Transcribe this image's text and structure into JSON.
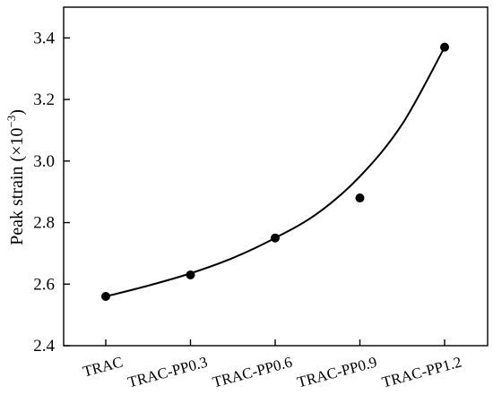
{
  "chart_data": {
    "type": "scatter",
    "categories": [
      "TRAC",
      "TRAC-PP0.3",
      "TRAC-PP0.6",
      "TRAC-PP0.9",
      "TRAC-PP1.2"
    ],
    "values": [
      2.56,
      2.63,
      2.75,
      2.88,
      3.37
    ],
    "fit_curve": {
      "x_index": [
        0,
        0.5,
        1,
        1.5,
        2,
        2.5,
        3,
        3.5,
        4
      ],
      "y": [
        2.56,
        2.595,
        2.635,
        2.685,
        2.75,
        2.83,
        2.95,
        3.12,
        3.37
      ]
    },
    "title": "",
    "xlabel": "",
    "ylabel": "Peak strain (×10",
    "ylabel_superscript": "−3",
    "ylabel_suffix": ")",
    "ylim": [
      2.4,
      3.5
    ],
    "yticks": [
      "2.4",
      "2.6",
      "2.8",
      "3.0",
      "3.2",
      "3.4"
    ],
    "ytick_values": [
      2.4,
      2.6,
      2.8,
      3.0,
      3.2,
      3.4
    ],
    "grid": false,
    "legend": "none",
    "marker_color": "#000000",
    "line_color": "#000000"
  }
}
